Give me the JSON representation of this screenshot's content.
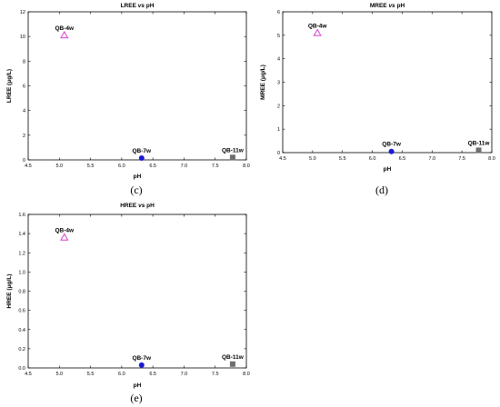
{
  "chart_data": [
    {
      "type": "scatter",
      "panel": "(c)",
      "title": {
        "pre": "LREE ",
        "vs": "vs",
        "post": " pH"
      },
      "xlabel": "pH",
      "ylabel": "LREE (μg/L)",
      "xlim": [
        4.5,
        8.0
      ],
      "ylim": [
        0,
        12
      ],
      "xticks": [
        "4.5",
        "5.0",
        "5.5",
        "6.0",
        "6.5",
        "7.0",
        "7.5",
        "8.0"
      ],
      "yticks": [
        "0",
        "2",
        "4",
        "6",
        "8",
        "10",
        "12"
      ],
      "grid": false,
      "points": [
        {
          "label": "QB-4w",
          "x": 5.08,
          "y": 10.1,
          "marker": "triangle",
          "color": "#d63fcf"
        },
        {
          "label": "QB-7w",
          "x": 6.32,
          "y": 0.15,
          "marker": "circle",
          "color": "#1a1ad6"
        },
        {
          "label": "QB-11w",
          "x": 7.78,
          "y": 0.2,
          "marker": "square",
          "color": "#6f6f6f"
        }
      ]
    },
    {
      "type": "scatter",
      "panel": "(d)",
      "title": {
        "pre": "MREE ",
        "vs": "vs",
        "post": " pH"
      },
      "xlabel": "pH",
      "ylabel": "MREE (μg/L)",
      "xlim": [
        4.5,
        8.0
      ],
      "ylim": [
        0,
        6
      ],
      "xticks": [
        "4.5",
        "5.0",
        "5.5",
        "6.0",
        "6.5",
        "7.0",
        "7.5",
        "8.0"
      ],
      "yticks": [
        "0",
        "1",
        "2",
        "3",
        "4",
        "5",
        "6"
      ],
      "grid": false,
      "points": [
        {
          "label": "QB-4w",
          "x": 5.08,
          "y": 5.1,
          "marker": "triangle",
          "color": "#d63fcf"
        },
        {
          "label": "QB-7w",
          "x": 6.32,
          "y": 0.05,
          "marker": "circle",
          "color": "#1a1ad6"
        },
        {
          "label": "QB-11w",
          "x": 7.78,
          "y": 0.1,
          "marker": "square",
          "color": "#6f6f6f"
        }
      ]
    },
    {
      "type": "scatter",
      "panel": "(e)",
      "title": {
        "pre": "HREE ",
        "vs": "vs",
        "post": " pH"
      },
      "xlabel": "pH",
      "ylabel": "HREE (μg/L)",
      "xlim": [
        4.5,
        8.0
      ],
      "ylim": [
        0,
        1.6
      ],
      "xticks": [
        "4.5",
        "5.0",
        "5.5",
        "6.0",
        "6.5",
        "7.0",
        "7.5",
        "8.0"
      ],
      "yticks": [
        "0.0",
        "0.2",
        "0.4",
        "0.6",
        "0.8",
        "1.0",
        "1.2",
        "1.4",
        "1.6"
      ],
      "grid": false,
      "points": [
        {
          "label": "QB-4w",
          "x": 5.08,
          "y": 1.36,
          "marker": "triangle",
          "color": "#d63fcf"
        },
        {
          "label": "QB-7w",
          "x": 6.32,
          "y": 0.03,
          "marker": "circle",
          "color": "#1a1ad6"
        },
        {
          "label": "QB-11w",
          "x": 7.78,
          "y": 0.04,
          "marker": "square",
          "color": "#6f6f6f"
        }
      ]
    }
  ]
}
